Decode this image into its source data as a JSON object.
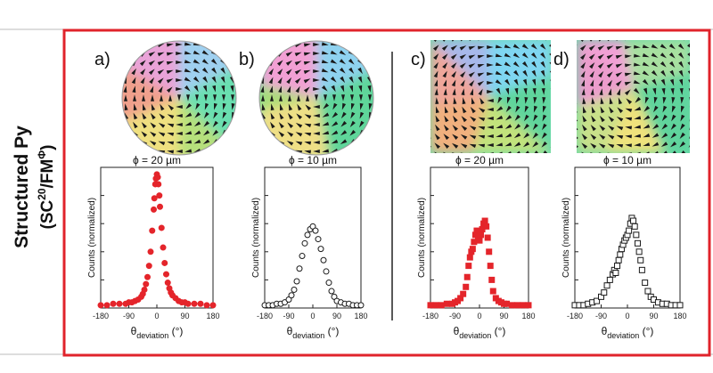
{
  "row_label": {
    "line1": "Structured Py",
    "line2_prefix": "(SC",
    "line2_sup1": "20",
    "line2_mid": "/FM",
    "line2_sup2": "Φ",
    "line2_suffix": ")"
  },
  "colors": {
    "frame": "#e0232b",
    "divider": "#222222",
    "red_data": "#e4252b",
    "black_data": "#1a1a1a"
  },
  "panels": [
    {
      "label": "a)",
      "shape": "disk",
      "annotation": "ϕ = 20 µm",
      "chart_data": {
        "type": "scatter",
        "title": "",
        "xlabel": "θdeviation (°)",
        "ylabel": "Counts (normalized)",
        "xlim": [
          -180,
          180
        ],
        "ylim": [
          0,
          1
        ],
        "xticks": [
          "-180",
          "-90",
          "0",
          "90",
          "180"
        ],
        "marker": "filled circle",
        "color": "#e4252b",
        "series": [
          {
            "name": "ϕ = 20 µm disk",
            "x": [
              -180,
              -160,
              -140,
              -120,
              -100,
              -90,
              -80,
              -70,
              -60,
              -50,
              -45,
              -40,
              -35,
              -30,
              -25,
              -20,
              -15,
              -10,
              -8,
              -5,
              -3,
              0,
              3,
              5,
              8,
              10,
              15,
              20,
              25,
              30,
              35,
              40,
              45,
              50,
              60,
              70,
              80,
              90,
              100,
              120,
              140,
              160,
              180
            ],
            "y": [
              0.02,
              0.02,
              0.03,
              0.03,
              0.03,
              0.04,
              0.04,
              0.05,
              0.06,
              0.08,
              0.1,
              0.13,
              0.17,
              0.22,
              0.3,
              0.4,
              0.55,
              0.7,
              0.78,
              0.88,
              0.92,
              0.95,
              0.93,
              0.88,
              0.8,
              0.72,
              0.57,
              0.43,
              0.32,
              0.24,
              0.18,
              0.14,
              0.11,
              0.09,
              0.07,
              0.05,
              0.04,
              0.04,
              0.03,
              0.03,
              0.03,
              0.02,
              0.02
            ]
          }
        ]
      }
    },
    {
      "label": "b)",
      "shape": "disk",
      "annotation": "ϕ = 10 µm",
      "chart_data": {
        "type": "scatter",
        "title": "",
        "xlabel": "θdeviation (°)",
        "ylabel": "Counts (normalized)",
        "xlim": [
          -180,
          180
        ],
        "ylim": [
          0,
          1
        ],
        "xticks": [
          "-180",
          "-90",
          "0",
          "90",
          "180"
        ],
        "marker": "open circle",
        "color": "#1a1a1a",
        "series": [
          {
            "name": "ϕ = 10 µm disk",
            "x": [
              -180,
              -165,
              -150,
              -135,
              -120,
              -105,
              -90,
              -80,
              -70,
              -60,
              -50,
              -40,
              -30,
              -20,
              -10,
              0,
              10,
              20,
              30,
              40,
              50,
              60,
              70,
              80,
              90,
              105,
              120,
              135,
              150,
              165,
              180
            ],
            "y": [
              0.02,
              0.02,
              0.02,
              0.03,
              0.03,
              0.04,
              0.06,
              0.09,
              0.13,
              0.19,
              0.28,
              0.37,
              0.46,
              0.52,
              0.56,
              0.58,
              0.55,
              0.49,
              0.42,
              0.34,
              0.26,
              0.18,
              0.12,
              0.08,
              0.05,
              0.04,
              0.03,
              0.03,
              0.02,
              0.02,
              0.02
            ]
          }
        ]
      }
    },
    {
      "label": "c)",
      "shape": "square",
      "annotation": "ϕ = 20 µm",
      "chart_data": {
        "type": "scatter",
        "title": "",
        "xlabel": "θdeviation (°)",
        "ylabel": "Counts (normalized)",
        "xlim": [
          -180,
          180
        ],
        "ylim": [
          0,
          1
        ],
        "xticks": [
          "-180",
          "-90",
          "0",
          "90",
          "180"
        ],
        "marker": "filled square",
        "color": "#e4252b",
        "series": [
          {
            "name": "ϕ = 20 µm square",
            "x": [
              -180,
              -160,
              -140,
              -120,
              -100,
              -90,
              -80,
              -70,
              -60,
              -50,
              -45,
              -40,
              -35,
              -30,
              -25,
              -20,
              -15,
              -10,
              -5,
              0,
              5,
              10,
              15,
              20,
              25,
              30,
              35,
              40,
              45,
              50,
              60,
              70,
              80,
              90,
              100,
              120,
              140,
              160,
              180
            ],
            "y": [
              0.02,
              0.02,
              0.02,
              0.03,
              0.03,
              0.04,
              0.05,
              0.07,
              0.1,
              0.15,
              0.22,
              0.3,
              0.36,
              0.4,
              0.42,
              0.47,
              0.52,
              0.55,
              0.51,
              0.48,
              0.52,
              0.56,
              0.6,
              0.62,
              0.58,
              0.5,
              0.4,
              0.3,
              0.2,
              0.12,
              0.07,
              0.05,
              0.04,
              0.03,
              0.03,
              0.02,
              0.02,
              0.02,
              0.02
            ]
          }
        ]
      }
    },
    {
      "label": "d)",
      "shape": "square",
      "annotation": "ϕ = 10 µm",
      "chart_data": {
        "type": "scatter",
        "title": "",
        "xlabel": "θdeviation (°)",
        "ylabel": "Counts (normalized)",
        "xlim": [
          -180,
          180
        ],
        "ylim": [
          0,
          1
        ],
        "xticks": [
          "-180",
          "-90",
          "0",
          "90",
          "180"
        ],
        "marker": "open square",
        "color": "#1a1a1a",
        "series": [
          {
            "name": "ϕ = 10 µm square",
            "x": [
              -180,
              -165,
              -150,
              -135,
              -120,
              -105,
              -90,
              -80,
              -70,
              -60,
              -50,
              -45,
              -40,
              -35,
              -30,
              -25,
              -20,
              -15,
              -10,
              -5,
              0,
              5,
              10,
              15,
              20,
              25,
              30,
              35,
              40,
              45,
              50,
              60,
              70,
              80,
              90,
              105,
              120,
              135,
              150,
              165,
              180
            ],
            "y": [
              0.02,
              0.02,
              0.02,
              0.03,
              0.04,
              0.05,
              0.08,
              0.11,
              0.16,
              0.2,
              0.24,
              0.27,
              0.25,
              0.3,
              0.34,
              0.38,
              0.42,
              0.45,
              0.48,
              0.5,
              0.52,
              0.55,
              0.6,
              0.64,
              0.62,
              0.58,
              0.52,
              0.46,
              0.4,
              0.34,
              0.27,
              0.18,
              0.12,
              0.08,
              0.06,
              0.04,
              0.03,
              0.03,
              0.02,
              0.02,
              0.02
            ]
          }
        ]
      }
    }
  ]
}
